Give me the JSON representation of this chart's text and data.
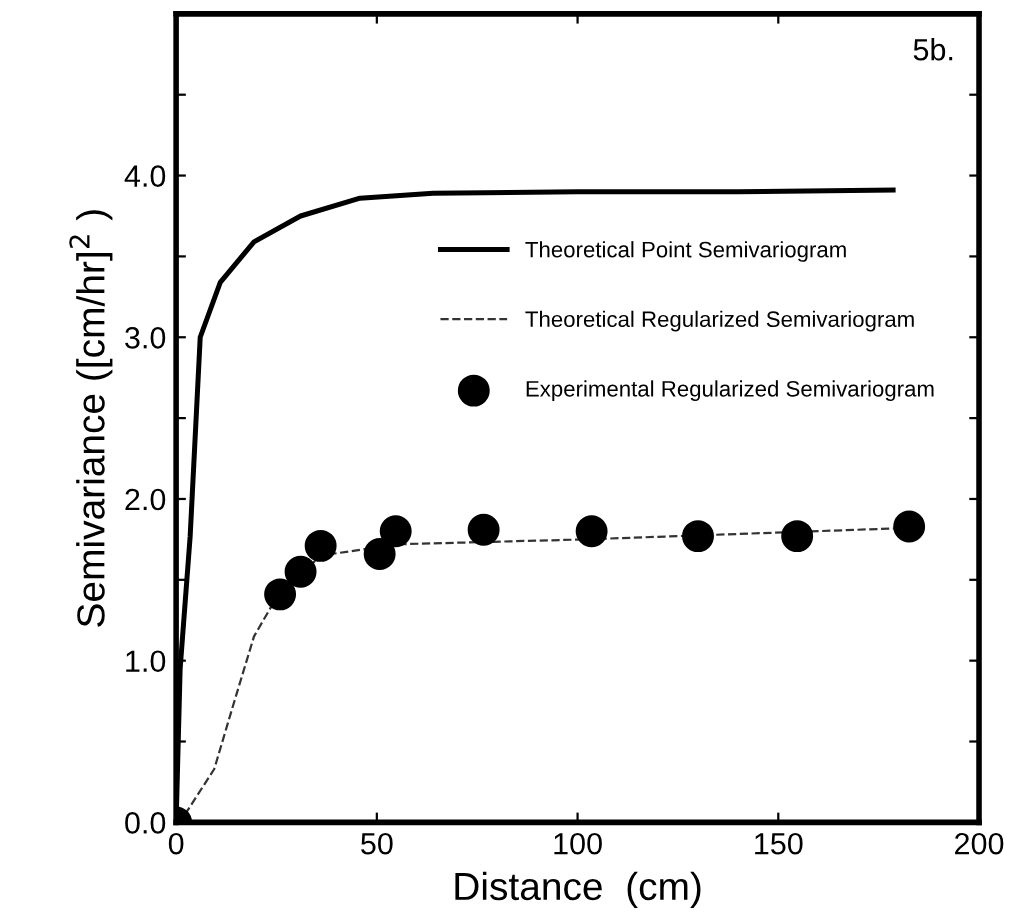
{
  "chart_data": {
    "type": "line",
    "xlabel": "Distance  (cm)",
    "ylabel": "Semivariance ([cm/hr]$^{2}$ )",
    "xlim": [
      0,
      200
    ],
    "xticks": [
      0,
      50,
      100,
      150,
      200
    ],
    "ylim": [
      0,
      5
    ],
    "yticks": [
      {
        "value": 0,
        "label": "0.0"
      },
      {
        "value": 0.5,
        "label": null
      },
      {
        "value": 1,
        "label": "1.0"
      },
      {
        "value": 1.5,
        "label": null
      },
      {
        "value": 2,
        "label": "2.0"
      },
      {
        "value": 2.5,
        "label": null
      },
      {
        "value": 3,
        "label": "3.0"
      },
      {
        "value": 3.5,
        "label": null
      },
      {
        "value": 4,
        "label": "4.0"
      },
      {
        "value": 4.5,
        "label": null
      },
      {
        "value": 5,
        "label": null
      }
    ],
    "legend": "right",
    "grid": false,
    "annotations": [
      "5b."
    ],
    "series": [
      {
        "name": "Theoretical Point Semivariogram",
        "line_style": "solid",
        "marker": "none",
        "color": "#000000",
        "x": [
          0,
          1,
          3.5,
          6,
          11,
          19.4,
          31,
          45.8,
          64,
          100,
          140,
          178.6
        ],
        "values": [
          0,
          0.95,
          1.77,
          3.0,
          3.34,
          3.59,
          3.75,
          3.86,
          3.89,
          3.9,
          3.9,
          3.91
        ]
      },
      {
        "name": "Theoretical Regularized Semivariogram",
        "line_style": "dashed",
        "marker": "none",
        "color": "#333333",
        "x": [
          0,
          2.5,
          9.5,
          14.4,
          19.4,
          25,
          36,
          55.7,
          102,
          181.6
        ],
        "values": [
          0,
          0.06,
          0.33,
          0.74,
          1.15,
          1.39,
          1.65,
          1.72,
          1.75,
          1.82
        ]
      },
      {
        "name": "Experimental Regularized Semivariogram",
        "type": "scatter",
        "marker": "circle",
        "color": "#000000",
        "x": [
          0,
          25.9,
          31,
          36,
          50.7,
          54.7,
          76.6,
          103.5,
          130,
          154.7,
          182.6
        ],
        "values": [
          0,
          1.41,
          1.55,
          1.71,
          1.66,
          1.8,
          1.81,
          1.8,
          1.77,
          1.77,
          1.83
        ]
      }
    ]
  }
}
